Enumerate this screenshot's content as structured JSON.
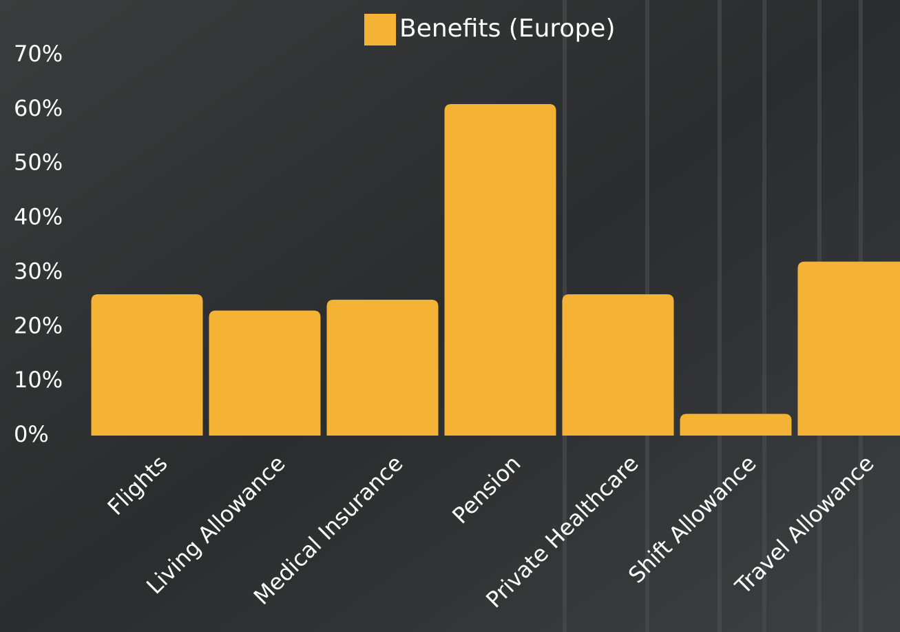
{
  "chart_data": {
    "type": "bar",
    "legend": "Benefits (Europe)",
    "legend_position": "top",
    "color": "#f5b335",
    "categories": [
      "Flights",
      "Living Allowance",
      "Medical Insurance",
      "Pension",
      "Private Healthcare",
      "Shift Allowance",
      "Travel Allowance"
    ],
    "values": [
      26,
      23,
      25,
      61,
      26,
      4,
      32
    ],
    "ylim": [
      0,
      70
    ],
    "yticks": [
      {
        "value": 0,
        "label": "0%"
      },
      {
        "value": 10,
        "label": "10%"
      },
      {
        "value": 20,
        "label": "20%"
      },
      {
        "value": 30,
        "label": "30%"
      },
      {
        "value": 40,
        "label": "40%"
      },
      {
        "value": 50,
        "label": "50%"
      },
      {
        "value": 60,
        "label": "60%"
      },
      {
        "value": 70,
        "label": "70%"
      }
    ],
    "grid": false
  }
}
